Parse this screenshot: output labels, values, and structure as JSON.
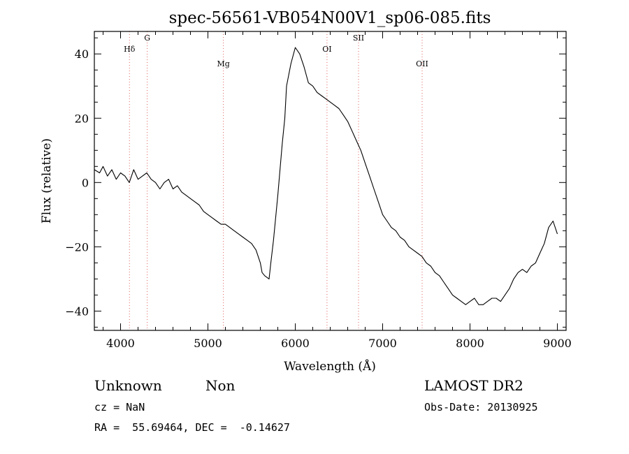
{
  "chart_data": {
    "type": "line",
    "title": "spec-56561-VB054N00V1_sp06-085.fits",
    "xlabel": "Wavelength (Å)",
    "ylabel": "Flux (relative)",
    "xlim": [
      3700,
      9100
    ],
    "ylim": [
      -46,
      47
    ],
    "x_ticks": [
      4000,
      5000,
      6000,
      7000,
      8000,
      9000
    ],
    "x_tick_labels": [
      "4000",
      "5000",
      "6000",
      "7000",
      "8000",
      "9000"
    ],
    "y_ticks": [
      -40,
      -20,
      0,
      20,
      40
    ],
    "y_tick_labels": [
      "−40",
      "−20",
      "0",
      "20",
      "40"
    ],
    "grid": false,
    "series": [
      {
        "x": [
          3700,
          3760,
          3800,
          3850,
          3900,
          3950,
          4000,
          4050,
          4100,
          4150,
          4200,
          4250,
          4300,
          4350,
          4400,
          4450,
          4500,
          4550,
          4600,
          4650,
          4700,
          4750,
          4800,
          4850,
          4900,
          4950,
          5000,
          5050,
          5100,
          5150,
          5200,
          5250,
          5300,
          5350,
          5400,
          5450,
          5500,
          5550,
          5600,
          5620,
          5650,
          5700,
          5720,
          5750,
          5800,
          5850,
          5880,
          5900,
          5950,
          6000,
          6050,
          6100,
          6150,
          6200,
          6250,
          6300,
          6350,
          6400,
          6450,
          6500,
          6550,
          6600,
          6650,
          6700,
          6750,
          6800,
          6850,
          6900,
          6950,
          7000,
          7050,
          7100,
          7150,
          7200,
          7250,
          7300,
          7350,
          7400,
          7450,
          7500,
          7550,
          7600,
          7650,
          7700,
          7750,
          7800,
          7850,
          7900,
          7950,
          8000,
          8050,
          8100,
          8150,
          8200,
          8250,
          8300,
          8350,
          8400,
          8450,
          8500,
          8550,
          8600,
          8650,
          8700,
          8750,
          8800,
          8850,
          8900,
          8950,
          9000
        ],
        "y": [
          4,
          3,
          5,
          2,
          4,
          1,
          3,
          2,
          0,
          4,
          1,
          2,
          3,
          1,
          0,
          -2,
          0,
          1,
          -2,
          -1,
          -3,
          -4,
          -5,
          -6,
          -7,
          -9,
          -10,
          -11,
          -12,
          -13,
          -13,
          -14,
          -15,
          -16,
          -17,
          -18,
          -19,
          -21,
          -25,
          -28,
          -29,
          -30,
          -25,
          -18,
          -4,
          12,
          20,
          30,
          37,
          42,
          40,
          36,
          31,
          30,
          28,
          27,
          26,
          25,
          24,
          23,
          21,
          19,
          16,
          13,
          10,
          6,
          2,
          -2,
          -6,
          -10,
          -12,
          -14,
          -15,
          -17,
          -18,
          -20,
          -21,
          -22,
          -23,
          -25,
          -26,
          -28,
          -29,
          -31,
          -33,
          -35,
          -36,
          -37,
          -38,
          -37,
          -36,
          -38,
          -38,
          -37,
          -36,
          -36,
          -37,
          -35,
          -33,
          -30,
          -28,
          -27,
          -28,
          -26,
          -25,
          -22,
          -19,
          -14,
          -12,
          -16
        ]
      }
    ],
    "line_markers": [
      {
        "label": "Hδ",
        "x": 4102
      },
      {
        "label": "G",
        "x": 4305
      },
      {
        "label": "Mg",
        "x": 5177
      },
      {
        "label": "OI",
        "x": 6363
      },
      {
        "label": "SII",
        "x": 6724
      },
      {
        "label": "OII",
        "x": 7452
      }
    ]
  },
  "footer": {
    "class_text": "Unknown",
    "subclass_text": "Non",
    "survey_text": "LAMOST DR2",
    "cz_text": "cz = NaN",
    "obs_date_text": "Obs-Date: 20130925",
    "coords_text": "RA =  55.69464, DEC =  -0.14627"
  },
  "colors": {
    "spectrum": "#000000",
    "marker_line": "#e06060",
    "axes": "#000000"
  }
}
